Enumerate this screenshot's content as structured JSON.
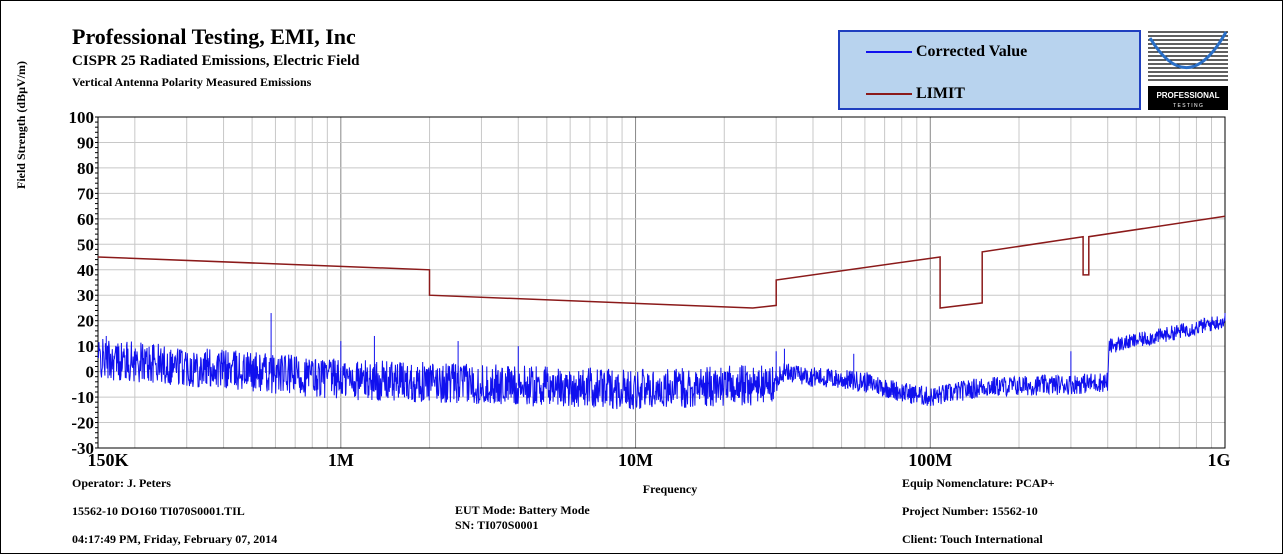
{
  "header": {
    "company": "Professional Testing, EMI, Inc",
    "test": "CISPR 25 Radiated Emissions, Electric Field",
    "description": "Vertical Antenna Polarity Measured Emissions"
  },
  "legend": [
    {
      "label": "Corrected Value",
      "color": "#1010ee"
    },
    {
      "label": "LIMIT",
      "color": "#8b1a1a"
    }
  ],
  "logo": {
    "text": "PROFESSIONAL",
    "subtext": "T E S T I N G"
  },
  "footer": {
    "operator": "Operator: J. Peters",
    "file": "15562-10 DO160 TI070S0001.TIL",
    "timestamp": "04:17:49 PM, Friday, February 07, 2014",
    "eut_mode": "EUT Mode: Battery Mode",
    "sn": "SN: TI070S0001",
    "equip": "Equip Nomenclature: PCAP+",
    "project": "Project Number: 15562-10",
    "client": "Client: Touch International"
  },
  "chart_data": {
    "type": "line",
    "title": "",
    "xlabel": "Frequency",
    "ylabel": "Field Strength (dBµV/m)",
    "x_scale": "log",
    "xlim_hz": [
      150000,
      1000000000
    ],
    "ylim": [
      -30,
      100
    ],
    "y_ticks": [
      100,
      90,
      80,
      70,
      60,
      50,
      40,
      30,
      20,
      10,
      0,
      -10,
      -20,
      -30
    ],
    "y_tick_labels": [
      "100",
      "90",
      "80",
      "70",
      "60",
      "50",
      "40",
      "30",
      "20",
      "10",
      "0",
      "-10",
      "-20",
      "-30"
    ],
    "x_tick_labels": [
      {
        "hz": 150000,
        "label": "150K"
      },
      {
        "hz": 1000000,
        "label": "1M"
      },
      {
        "hz": 10000000,
        "label": "10M"
      },
      {
        "hz": 100000000,
        "label": "100M"
      },
      {
        "hz": 1000000000,
        "label": "1G"
      }
    ],
    "grid": true,
    "series": [
      {
        "name": "LIMIT",
        "color": "#8b1a1a",
        "points": [
          [
            150000,
            45
          ],
          [
            2000000,
            40
          ],
          [
            2000000,
            30
          ],
          [
            25000000,
            25
          ],
          [
            30000000,
            26
          ],
          [
            30000000,
            36
          ],
          [
            108000000,
            45
          ],
          [
            108000000,
            25
          ],
          [
            150000000,
            27
          ],
          [
            150000000,
            47
          ],
          [
            330000000,
            53
          ],
          [
            330000000,
            38
          ],
          [
            345000000,
            38
          ],
          [
            345000000,
            53
          ],
          [
            1000000000,
            61
          ]
        ]
      },
      {
        "name": "Corrected Value",
        "color": "#1010ee",
        "envelope_points": [
          [
            150000,
            5
          ],
          [
            500000,
            0
          ],
          [
            1000000,
            -3
          ],
          [
            3000000,
            -5
          ],
          [
            10000000,
            -7
          ],
          [
            30000000,
            -5
          ],
          [
            31000000,
            0
          ],
          [
            40000000,
            -2
          ],
          [
            60000000,
            -4
          ],
          [
            80000000,
            -8
          ],
          [
            100000000,
            -10
          ],
          [
            150000000,
            -6
          ],
          [
            300000000,
            -5
          ],
          [
            400000000,
            -4
          ],
          [
            405000000,
            10
          ],
          [
            600000000,
            14
          ],
          [
            1000000000,
            20
          ]
        ],
        "peaks": [
          [
            160000,
            14
          ],
          [
            580000,
            23
          ],
          [
            1000000,
            12
          ],
          [
            1300000,
            14
          ],
          [
            2500000,
            12
          ],
          [
            4000000,
            10
          ],
          [
            30000000,
            8
          ],
          [
            32000000,
            9
          ],
          [
            55000000,
            7
          ],
          [
            300000000,
            8
          ],
          [
            1000000000,
            23
          ]
        ]
      }
    ]
  }
}
